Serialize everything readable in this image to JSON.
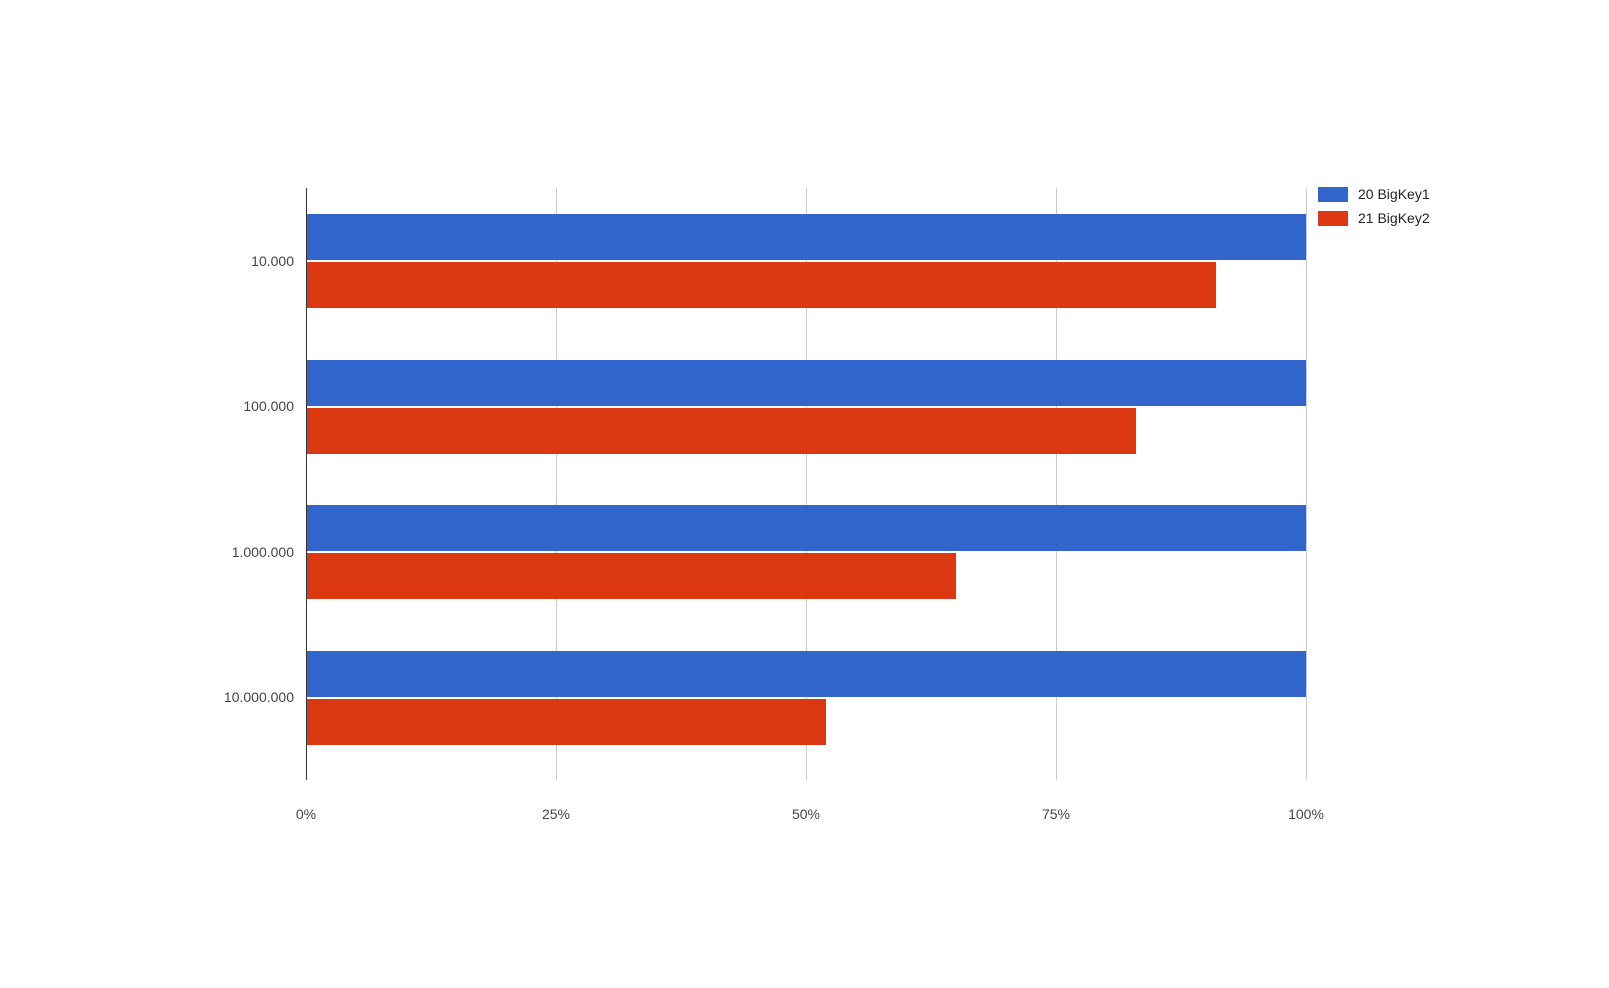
{
  "chart_data": {
    "type": "bar",
    "orientation": "horizontal",
    "title": "",
    "categories": [
      "10.000",
      "100.000",
      "1.000.000",
      "10.000.000"
    ],
    "series": [
      {
        "name": "20 BigKey1",
        "color": "#3366cc",
        "values": [
          100,
          100,
          100,
          100
        ]
      },
      {
        "name": "21 BigKey2",
        "color": "#dc3912",
        "values": [
          91,
          83,
          65,
          52
        ]
      }
    ],
    "x_axis": {
      "unit": "%",
      "min": 0,
      "max": 100,
      "tick_values": [
        0,
        25,
        50,
        75,
        100
      ],
      "tick_labels": [
        "0%",
        "25%",
        "50%",
        "75%",
        "100%"
      ]
    },
    "y_axis": {
      "label": ""
    },
    "legend": {
      "position": "top-right"
    },
    "grid": true,
    "colors": {
      "background": "#ffffff",
      "gridline": "#cccccc",
      "baseline": "#333333",
      "axis_text": "#444444",
      "legend_text": "#222222"
    }
  }
}
